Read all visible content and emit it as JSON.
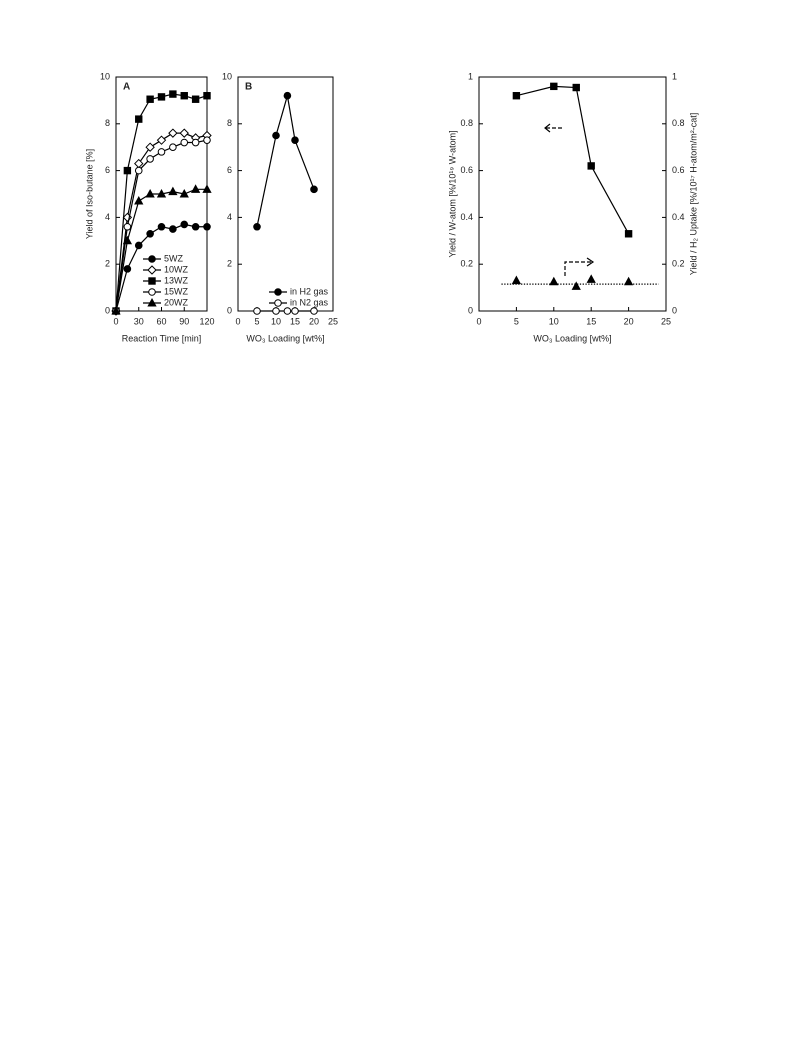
{
  "chart_data": [
    {
      "type": "line",
      "panel_label": "A",
      "x_label": "Reaction Time  [min]",
      "y_label": "Yield of Iso-butane [%]",
      "x": [
        0,
        15,
        30,
        45,
        60,
        75,
        90,
        105,
        120
      ],
      "xlim": [
        0,
        120
      ],
      "xticks": [
        0,
        30,
        60,
        90,
        120
      ],
      "ylim": [
        0,
        10
      ],
      "yticks": [
        0,
        2,
        4,
        6,
        8,
        10
      ],
      "legend": "lower right",
      "series": [
        {
          "name": "5WZ",
          "color": "#000000",
          "marker": "circle",
          "filled": true,
          "line": true,
          "values": [
            0,
            1.8,
            2.8,
            3.3,
            3.6,
            3.5,
            3.7,
            3.6,
            3.6
          ]
        },
        {
          "name": "10WZ",
          "color": "#000000",
          "marker": "diamond",
          "filled": false,
          "line": true,
          "values": [
            0,
            4.0,
            6.3,
            7.0,
            7.3,
            7.6,
            7.6,
            7.4,
            7.5
          ]
        },
        {
          "name": "13WZ",
          "color": "#000000",
          "marker": "square",
          "filled": true,
          "line": true,
          "values": [
            0,
            6.0,
            8.2,
            9.05,
            9.15,
            9.27,
            9.2,
            9.05,
            9.2
          ]
        },
        {
          "name": "15WZ",
          "color": "#000000",
          "marker": "circle",
          "filled": false,
          "line": true,
          "values": [
            0,
            3.6,
            6.0,
            6.5,
            6.8,
            7.0,
            7.2,
            7.2,
            7.3
          ]
        },
        {
          "name": "20WZ",
          "color": "#000000",
          "marker": "triangle",
          "filled": true,
          "line": true,
          "values": [
            0,
            3.0,
            4.7,
            5.0,
            5.0,
            5.1,
            5.0,
            5.2,
            5.2
          ]
        }
      ]
    },
    {
      "type": "line",
      "panel_label": "B",
      "x_label": "WO₃ Loading [wt%]",
      "x": [
        5,
        10,
        13,
        15,
        20
      ],
      "xlim": [
        0,
        25
      ],
      "xticks": [
        0,
        5,
        10,
        15,
        20,
        25
      ],
      "ylim": [
        0,
        10
      ],
      "yticks": [
        0,
        2,
        4,
        6,
        8,
        10
      ],
      "legend": "lower right",
      "series": [
        {
          "name": "in H2 gas",
          "color": "#000000",
          "marker": "circle",
          "filled": true,
          "line": true,
          "values": [
            3.6,
            7.5,
            9.2,
            7.3,
            5.2
          ]
        },
        {
          "name": "in N2 gas",
          "color": "#000000",
          "marker": "circle",
          "filled": false,
          "line": true,
          "values": [
            0,
            0,
            0,
            0,
            0
          ]
        }
      ]
    },
    {
      "type": "line",
      "x_label": "WO₃ Loading [wt%]",
      "y_label": "Yield / W-atom [%/10¹⁹ W-atom]",
      "y2_label": "Yield / H₂ Uptake [%/10¹⁷ H-atom/m²-cat]",
      "x": [
        5,
        10,
        13,
        15,
        20
      ],
      "xlim": [
        0,
        25
      ],
      "xticks": [
        0,
        5,
        10,
        15,
        20,
        25
      ],
      "ylim": [
        0,
        1
      ],
      "yticks": [
        0,
        0.2,
        0.4,
        0.6,
        0.8,
        1
      ],
      "y2lim": [
        0,
        1
      ],
      "y2ticks": [
        0,
        0.2,
        0.4,
        0.6,
        0.8,
        1
      ],
      "series": [
        {
          "color": "#000000",
          "marker": "square",
          "filled": true,
          "line": true,
          "values": [
            0.92,
            0.96,
            0.955,
            0.62,
            0.33
          ]
        },
        {
          "color": "#000000",
          "marker": "triangle",
          "filled": true,
          "line": false,
          "axis": "y2",
          "values": [
            0.13,
            0.125,
            0.105,
            0.135,
            0.125
          ]
        }
      ],
      "hline": {
        "y": 0.115,
        "x": [
          3,
          24
        ],
        "axis": "y2",
        "style": "dotted"
      }
    }
  ]
}
